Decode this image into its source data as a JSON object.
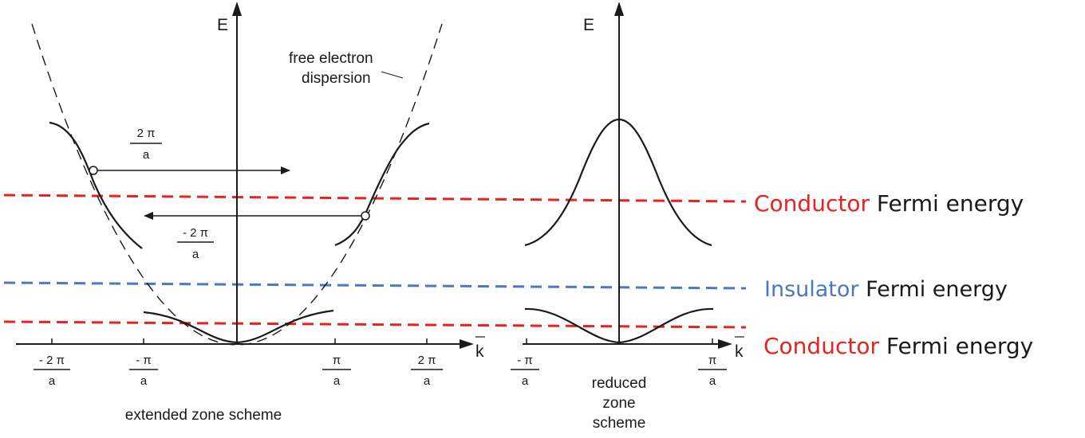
{
  "extended": {
    "energy_axis": "E",
    "k_axis": "k",
    "annotation": [
      "free electron",
      "dispersion"
    ],
    "shift_pos": {
      "num": "2 π",
      "den": "a"
    },
    "shift_neg": {
      "num": "- 2 π",
      "den": "a"
    },
    "ticks": [
      {
        "num": "- 2 π",
        "den": "a"
      },
      {
        "num": "- π",
        "den": "a"
      },
      {
        "num": "π",
        "den": "a"
      },
      {
        "num": "2 π",
        "den": "a"
      }
    ],
    "caption": "extended zone scheme"
  },
  "reduced": {
    "energy_axis": "E",
    "k_axis": "k",
    "ticks": [
      {
        "num": "- π",
        "den": "a"
      },
      {
        "num": "π",
        "den": "a"
      }
    ],
    "caption": [
      "reduced",
      "zone",
      "scheme"
    ]
  },
  "fermi_levels": [
    {
      "material": "Conductor",
      "suffix": " Fermi energy",
      "color": "#e8231f"
    },
    {
      "material": "Insulator",
      "suffix": " Fermi energy",
      "color": "#4a78c4"
    },
    {
      "material": "Conductor",
      "suffix": " Fermi energy",
      "color": "#e8231f"
    }
  ],
  "colors": {
    "line": "#1a1a1a",
    "conductor": "#e8231f",
    "insulator": "#4a78c4"
  }
}
